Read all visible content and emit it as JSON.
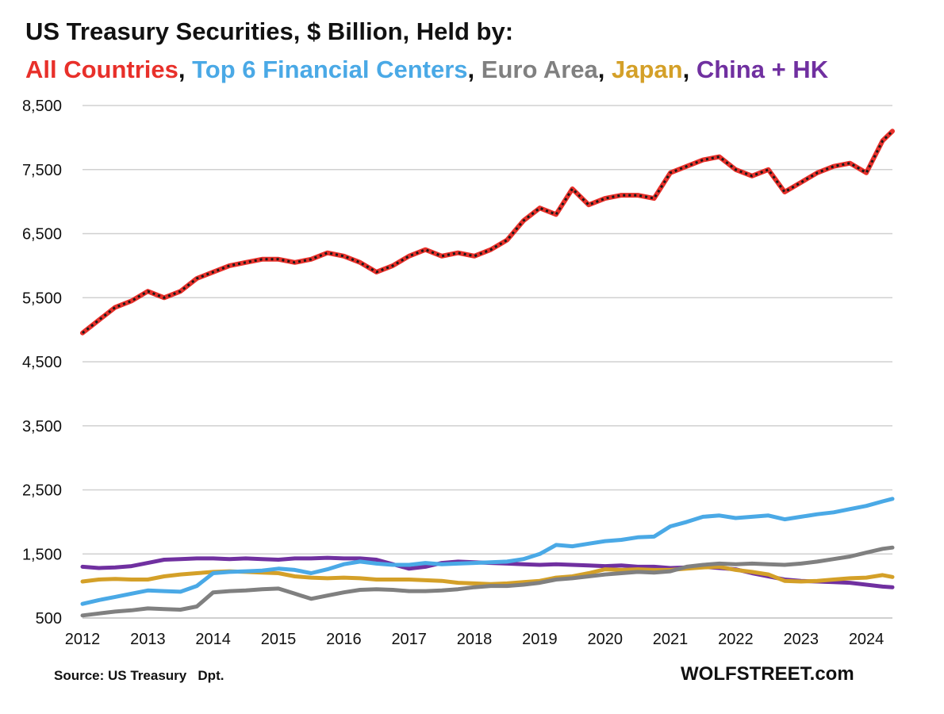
{
  "title": "US Treasury Securities, $ Billion, Held by:",
  "legend": [
    {
      "label": "All Countries",
      "color": "#e8302a",
      "sep": ", "
    },
    {
      "label": "Top 6 Financial Centers",
      "color": "#4aa9e6",
      "sep": ", "
    },
    {
      "label": "Euro Area",
      "color": "#808080",
      "sep": ", "
    },
    {
      "label": "Japan",
      "color": "#d4a028",
      "sep": ", "
    },
    {
      "label": "China + HK",
      "color": "#7030a0",
      "sep": ""
    }
  ],
  "source": "Source: US Treasury   Dpt.",
  "brand": "WOLFSTREET.com",
  "chart_data": {
    "type": "line",
    "title": "US Treasury Securities, $ Billion, Held by:",
    "xlabel": "",
    "ylabel": "",
    "xlim": [
      2012,
      2024.4
    ],
    "ylim": [
      500,
      8500
    ],
    "y_ticks": [
      500,
      1500,
      2500,
      3500,
      4500,
      5500,
      6500,
      7500,
      8500
    ],
    "y_tick_labels": [
      "500",
      "1,500",
      "2,500",
      "3,500",
      "4,500",
      "5,500",
      "6,500",
      "7,500",
      "8,500"
    ],
    "x_ticks": [
      2012,
      2013,
      2014,
      2015,
      2016,
      2017,
      2018,
      2019,
      2020,
      2021,
      2022,
      2023,
      2024
    ],
    "x_tick_labels": [
      "2012",
      "2013",
      "2014",
      "2015",
      "2016",
      "2017",
      "2018",
      "2019",
      "2020",
      "2021",
      "2022",
      "2023",
      "2024"
    ],
    "grid": true,
    "x": [
      2012,
      2012.25,
      2012.5,
      2012.75,
      2013,
      2013.25,
      2013.5,
      2013.75,
      2014,
      2014.25,
      2014.5,
      2014.75,
      2015,
      2015.25,
      2015.5,
      2015.75,
      2016,
      2016.25,
      2016.5,
      2016.75,
      2017,
      2017.25,
      2017.5,
      2017.75,
      2018,
      2018.25,
      2018.5,
      2018.75,
      2019,
      2019.25,
      2019.5,
      2019.75,
      2020,
      2020.25,
      2020.5,
      2020.75,
      2021,
      2021.25,
      2021.5,
      2021.75,
      2022,
      2022.25,
      2022.5,
      2022.75,
      2023,
      2023.25,
      2023.5,
      2023.75,
      2024,
      2024.25,
      2024.4
    ],
    "series": [
      {
        "name": "All Countries",
        "color": "#e8302a",
        "dotted": true,
        "values": [
          4950,
          5150,
          5350,
          5450,
          5600,
          5500,
          5600,
          5800,
          5900,
          6000,
          6050,
          6100,
          6100,
          6050,
          6100,
          6200,
          6150,
          6050,
          5900,
          6000,
          6150,
          6250,
          6150,
          6200,
          6150,
          6250,
          6400,
          6700,
          6900,
          6800,
          7200,
          6950,
          7050,
          7100,
          7100,
          7050,
          7450,
          7550,
          7650,
          7700,
          7500,
          7400,
          7500,
          7150,
          7300,
          7450,
          7550,
          7600,
          7450,
          7950,
          8100
        ]
      },
      {
        "name": "Top 6 Financial Centers",
        "color": "#4aa9e6",
        "values": [
          720,
          780,
          830,
          880,
          930,
          920,
          910,
          1000,
          1200,
          1220,
          1230,
          1240,
          1270,
          1250,
          1200,
          1260,
          1340,
          1380,
          1350,
          1330,
          1330,
          1360,
          1340,
          1350,
          1360,
          1370,
          1380,
          1420,
          1500,
          1640,
          1620,
          1660,
          1700,
          1720,
          1760,
          1770,
          1930,
          2000,
          2080,
          2100,
          2060,
          2080,
          2100,
          2040,
          2080,
          2120,
          2150,
          2200,
          2250,
          2320,
          2360
        ]
      },
      {
        "name": "Euro Area",
        "color": "#808080",
        "values": [
          540,
          570,
          600,
          620,
          650,
          640,
          630,
          680,
          900,
          920,
          930,
          950,
          960,
          880,
          800,
          850,
          900,
          940,
          950,
          940,
          920,
          920,
          930,
          950,
          980,
          1000,
          1000,
          1020,
          1050,
          1100,
          1120,
          1150,
          1180,
          1200,
          1220,
          1210,
          1230,
          1300,
          1330,
          1350,
          1340,
          1350,
          1340,
          1330,
          1350,
          1380,
          1420,
          1460,
          1520,
          1580,
          1600
        ]
      },
      {
        "name": "Japan",
        "color": "#d4a028",
        "values": [
          1070,
          1100,
          1110,
          1100,
          1100,
          1150,
          1180,
          1200,
          1220,
          1230,
          1220,
          1210,
          1200,
          1150,
          1130,
          1120,
          1130,
          1120,
          1100,
          1100,
          1100,
          1090,
          1080,
          1050,
          1040,
          1030,
          1040,
          1060,
          1080,
          1130,
          1150,
          1200,
          1260,
          1250,
          1260,
          1250,
          1250,
          1270,
          1290,
          1300,
          1250,
          1220,
          1180,
          1080,
          1070,
          1080,
          1100,
          1120,
          1130,
          1170,
          1140
        ]
      },
      {
        "name": "China + HK",
        "color": "#7030a0",
        "values": [
          1300,
          1280,
          1290,
          1310,
          1360,
          1410,
          1420,
          1430,
          1430,
          1420,
          1430,
          1420,
          1410,
          1430,
          1430,
          1440,
          1430,
          1430,
          1410,
          1340,
          1270,
          1300,
          1360,
          1380,
          1370,
          1360,
          1350,
          1340,
          1330,
          1340,
          1330,
          1320,
          1310,
          1320,
          1300,
          1300,
          1280,
          1290,
          1300,
          1280,
          1260,
          1200,
          1150,
          1100,
          1080,
          1070,
          1060,
          1050,
          1020,
          990,
          980
        ]
      }
    ]
  }
}
